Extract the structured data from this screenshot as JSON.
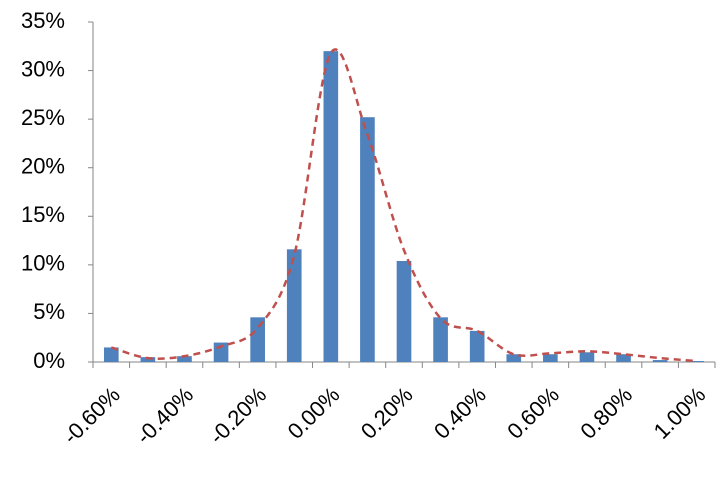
{
  "chart_data": {
    "type": "bar",
    "categories": [
      "-0.60%",
      null,
      "-0.40%",
      null,
      "-0.20%",
      null,
      "0.00%",
      null,
      "0.20%",
      null,
      "0.40%",
      null,
      "0.60%",
      null,
      "0.80%",
      null,
      "1.00%"
    ],
    "series": [
      {
        "type": "bar",
        "color": "#4f81bd",
        "values": [
          1.5,
          0.5,
          0.6,
          2.0,
          4.6,
          11.6,
          32.0,
          25.2,
          10.4,
          4.6,
          3.2,
          0.8,
          0.8,
          1.0,
          0.8,
          0.2,
          0.1
        ]
      },
      {
        "type": "line",
        "color": "#c0504d",
        "dashed": true,
        "smooth": true,
        "values": [
          1.5,
          0.4,
          0.6,
          1.6,
          3.5,
          11.0,
          31.8,
          23.4,
          11.5,
          4.5,
          3.2,
          0.8,
          0.9,
          1.1,
          0.8,
          0.4,
          0.1
        ]
      }
    ],
    "ylim": [
      0,
      35
    ],
    "yticks": [
      {
        "value": 0,
        "label": "0%"
      },
      {
        "value": 5,
        "label": "5%"
      },
      {
        "value": 10,
        "label": "10%"
      },
      {
        "value": 15,
        "label": "15%"
      },
      {
        "value": 20,
        "label": "20%"
      },
      {
        "value": 25,
        "label": "25%"
      },
      {
        "value": 30,
        "label": "30%"
      },
      {
        "value": 35,
        "label": "35%"
      }
    ],
    "grid": false
  }
}
